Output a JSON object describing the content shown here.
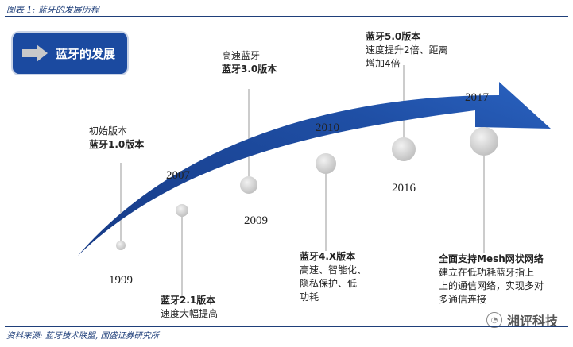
{
  "figure": {
    "caption": "图表 1: 蓝牙的发展历程",
    "source": "资料来源: 蓝牙技术联盟, 国盛证券研究所"
  },
  "title_box": {
    "label": "蓝牙的发展",
    "color": "#1b4aa0"
  },
  "arrow": {
    "color_dark": "#163a86",
    "color_light": "#2f6fd0"
  },
  "milestones": [
    {
      "year": "1999",
      "title": "蓝牙1.0版本",
      "lines": [
        "初始版本"
      ]
    },
    {
      "year": "2007",
      "title": "蓝牙2.1版本",
      "lines": [
        "速度大幅提高"
      ]
    },
    {
      "year": "2009",
      "title": "蓝牙3.0版本",
      "lines": [
        "高速蓝牙"
      ]
    },
    {
      "year": "2010",
      "title": "蓝牙4.X版本",
      "lines": [
        "高速、智能化、",
        "隐私保护、低",
        "功耗"
      ]
    },
    {
      "year": "2016",
      "title": "蓝牙5.0版本",
      "lines": [
        "速度提升2倍、距离",
        "增加4倍"
      ]
    },
    {
      "year": "2017",
      "title": "全面支持Mesh网状网络",
      "lines": [
        "建立在低功耗蓝牙指上",
        "上的通信网络，实现多对",
        "多通信连接"
      ]
    }
  ],
  "watermark": {
    "text": "湘评科技",
    "icon": "wechat-icon"
  }
}
